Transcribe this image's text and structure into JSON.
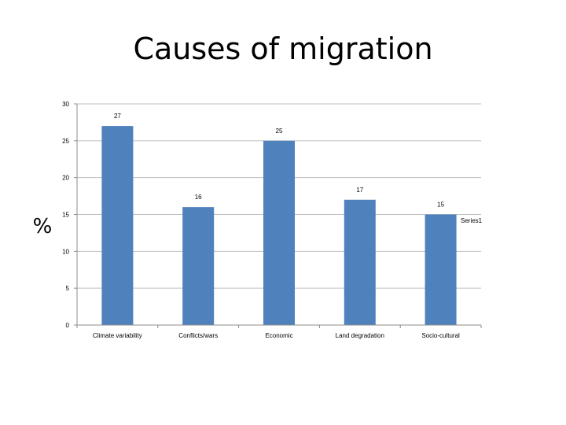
{
  "slide": {
    "title": "Causes of migration"
  },
  "chart_data": {
    "type": "bar",
    "title": "Causes of migration",
    "xlabel": "",
    "ylabel": "%",
    "categories": [
      "Climate variability",
      "Conflicts/wars",
      "Economic",
      "Land degradation",
      "Socio-cultural"
    ],
    "series": [
      {
        "name": "Series1",
        "values": [
          27,
          16,
          25,
          17,
          15
        ],
        "data_labels": [
          "27",
          "16",
          "25",
          "17",
          "15"
        ]
      }
    ],
    "ylim": [
      0,
      30
    ],
    "yticks": [
      0,
      5,
      10,
      15,
      20,
      25,
      30
    ],
    "grid": true,
    "legend": "right",
    "colors": {
      "bar": "#4F81BD",
      "grid": "#BFBFBF",
      "axis": "#8C8C8C"
    }
  }
}
